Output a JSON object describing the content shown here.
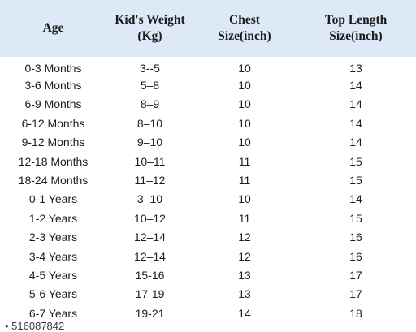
{
  "table": {
    "headers": {
      "age": [
        "Age"
      ],
      "weight": [
        "Kid's Weight",
        "(Kg)"
      ],
      "chest": [
        "Chest",
        "Size(inch)"
      ],
      "top": [
        "Top Length",
        "Size(inch)"
      ]
    },
    "rows": [
      {
        "age": "0-3 Months",
        "weight": "3--5",
        "chest": "10",
        "top": "13"
      },
      {
        "age": "3-6 Months",
        "weight": "5–8",
        "chest": "10",
        "top": "14"
      },
      {
        "age": "6-9 Months",
        "weight": "8–9",
        "chest": "10",
        "top": "14"
      },
      {
        "age": "6-12 Months",
        "weight": "8–10",
        "chest": "10",
        "top": "14"
      },
      {
        "age": "9-12 Months",
        "weight": "9–10",
        "chest": "10",
        "top": "14"
      },
      {
        "age": "12-18 Months",
        "weight": "10–11",
        "chest": "11",
        "top": "15"
      },
      {
        "age": "18-24 Months",
        "weight": "11–12",
        "chest": "11",
        "top": "15"
      },
      {
        "age": "0-1 Years",
        "weight": "3–10",
        "chest": "10",
        "top": "14"
      },
      {
        "age": "1-2 Years",
        "weight": "10–12",
        "chest": "11",
        "top": "15"
      },
      {
        "age": "2-3 Years",
        "weight": "12–14",
        "chest": "12",
        "top": "16"
      },
      {
        "age": "3-4 Years",
        "weight": "12–14",
        "chest": "12",
        "top": "16"
      },
      {
        "age": "4-5 Years",
        "weight": "15-16",
        "chest": "13",
        "top": "17"
      },
      {
        "age": "5-6 Years",
        "weight": "17-19",
        "chest": "13",
        "top": "17"
      },
      {
        "age": "6-7 Years",
        "weight": "19-21",
        "chest": "14",
        "top": "18"
      }
    ]
  },
  "cut_off_text": "• 516087842"
}
